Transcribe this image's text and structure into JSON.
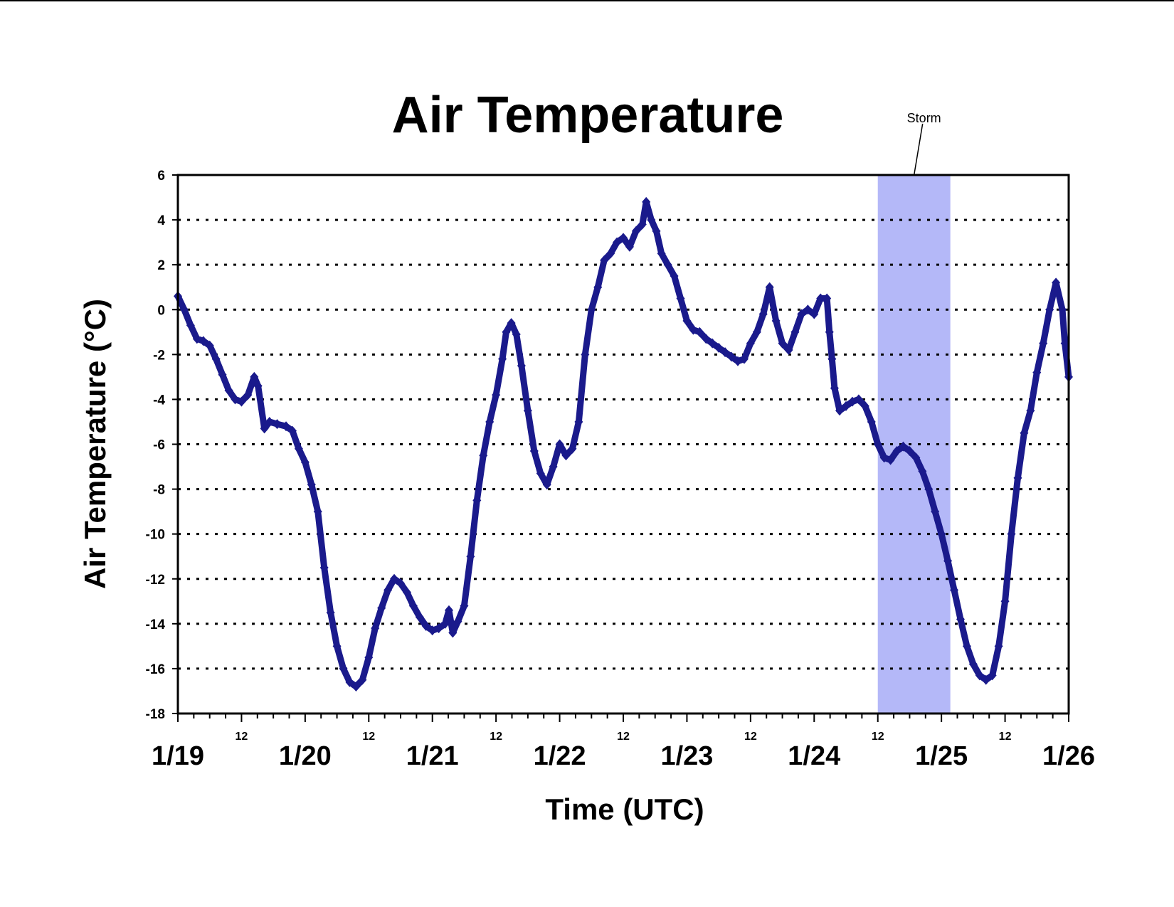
{
  "chart_data": {
    "type": "scatter",
    "title": "Air Temperature",
    "xlabel": "Time (UTC)",
    "ylabel": "Air Temperature (°C)",
    "ylim": [
      -18,
      6
    ],
    "xlim": [
      0,
      7
    ],
    "x_unit": "days since 1/19 00 UTC",
    "grid": "dotted horizontal",
    "yticks": [
      "6",
      "4",
      "2",
      "0",
      "-2",
      "-4",
      "-6",
      "-8",
      "-10",
      "-12",
      "-14",
      "-16",
      "-18"
    ],
    "day_ticks": [
      "1/19",
      "1/20",
      "1/21",
      "1/22",
      "1/23",
      "1/24",
      "1/25",
      "1/26"
    ],
    "hour_ticks": [
      "12",
      "12",
      "12",
      "12",
      "12",
      "12",
      "12"
    ],
    "annotation": {
      "label": "Storm",
      "start": 5.5,
      "end": 6.07,
      "color": "#b4b8f8"
    },
    "series": [
      {
        "name": "Air Temperature",
        "color": "#1a1a8c",
        "points": [
          [
            0.0,
            0.6
          ],
          [
            0.05,
            0.0
          ],
          [
            0.1,
            -0.7
          ],
          [
            0.15,
            -1.3
          ],
          [
            0.2,
            -1.4
          ],
          [
            0.25,
            -1.6
          ],
          [
            0.3,
            -2.2
          ],
          [
            0.35,
            -2.9
          ],
          [
            0.4,
            -3.6
          ],
          [
            0.45,
            -4.0
          ],
          [
            0.5,
            -4.1
          ],
          [
            0.55,
            -3.8
          ],
          [
            0.6,
            -3.0
          ],
          [
            0.63,
            -3.4
          ],
          [
            0.68,
            -5.3
          ],
          [
            0.72,
            -5.0
          ],
          [
            0.78,
            -5.1
          ],
          [
            0.85,
            -5.2
          ],
          [
            0.9,
            -5.4
          ],
          [
            0.95,
            -6.2
          ],
          [
            1.0,
            -6.8
          ],
          [
            1.05,
            -7.8
          ],
          [
            1.1,
            -9.0
          ],
          [
            1.15,
            -11.5
          ],
          [
            1.2,
            -13.5
          ],
          [
            1.25,
            -15.0
          ],
          [
            1.3,
            -16.0
          ],
          [
            1.35,
            -16.6
          ],
          [
            1.4,
            -16.8
          ],
          [
            1.45,
            -16.5
          ],
          [
            1.5,
            -15.5
          ],
          [
            1.55,
            -14.2
          ],
          [
            1.6,
            -13.3
          ],
          [
            1.65,
            -12.5
          ],
          [
            1.7,
            -12.0
          ],
          [
            1.75,
            -12.2
          ],
          [
            1.8,
            -12.6
          ],
          [
            1.85,
            -13.2
          ],
          [
            1.9,
            -13.7
          ],
          [
            1.95,
            -14.1
          ],
          [
            2.0,
            -14.3
          ],
          [
            2.05,
            -14.2
          ],
          [
            2.1,
            -14.0
          ],
          [
            2.13,
            -13.4
          ],
          [
            2.16,
            -14.4
          ],
          [
            2.2,
            -13.9
          ],
          [
            2.25,
            -13.2
          ],
          [
            2.3,
            -11.0
          ],
          [
            2.35,
            -8.5
          ],
          [
            2.4,
            -6.5
          ],
          [
            2.45,
            -5.0
          ],
          [
            2.5,
            -3.8
          ],
          [
            2.55,
            -2.2
          ],
          [
            2.58,
            -1.0
          ],
          [
            2.62,
            -0.6
          ],
          [
            2.66,
            -1.1
          ],
          [
            2.7,
            -2.5
          ],
          [
            2.75,
            -4.5
          ],
          [
            2.8,
            -6.3
          ],
          [
            2.85,
            -7.3
          ],
          [
            2.9,
            -7.8
          ],
          [
            2.95,
            -7.0
          ],
          [
            3.0,
            -6.0
          ],
          [
            3.05,
            -6.5
          ],
          [
            3.1,
            -6.2
          ],
          [
            3.15,
            -5.0
          ],
          [
            3.2,
            -2.0
          ],
          [
            3.25,
            0.0
          ],
          [
            3.3,
            1.0
          ],
          [
            3.35,
            2.2
          ],
          [
            3.4,
            2.5
          ],
          [
            3.45,
            3.0
          ],
          [
            3.5,
            3.2
          ],
          [
            3.55,
            2.8
          ],
          [
            3.6,
            3.5
          ],
          [
            3.65,
            3.8
          ],
          [
            3.68,
            4.8
          ],
          [
            3.72,
            4.0
          ],
          [
            3.76,
            3.5
          ],
          [
            3.8,
            2.5
          ],
          [
            3.85,
            2.0
          ],
          [
            3.9,
            1.5
          ],
          [
            3.95,
            0.5
          ],
          [
            4.0,
            -0.5
          ],
          [
            4.05,
            -0.9
          ],
          [
            4.1,
            -1.0
          ],
          [
            4.15,
            -1.3
          ],
          [
            4.2,
            -1.5
          ],
          [
            4.25,
            -1.7
          ],
          [
            4.3,
            -1.9
          ],
          [
            4.35,
            -2.1
          ],
          [
            4.4,
            -2.3
          ],
          [
            4.45,
            -2.2
          ],
          [
            4.5,
            -1.5
          ],
          [
            4.55,
            -1.0
          ],
          [
            4.6,
            -0.2
          ],
          [
            4.65,
            1.0
          ],
          [
            4.7,
            -0.5
          ],
          [
            4.75,
            -1.5
          ],
          [
            4.8,
            -1.8
          ],
          [
            4.85,
            -1.0
          ],
          [
            4.9,
            -0.2
          ],
          [
            4.95,
            0.0
          ],
          [
            5.0,
            -0.2
          ],
          [
            5.05,
            0.5
          ],
          [
            5.1,
            0.5
          ],
          [
            5.12,
            -1.0
          ],
          [
            5.14,
            -2.2
          ],
          [
            5.16,
            -3.5
          ],
          [
            5.2,
            -4.5
          ],
          [
            5.25,
            -4.3
          ],
          [
            5.3,
            -4.1
          ],
          [
            5.35,
            -4.0
          ],
          [
            5.4,
            -4.3
          ],
          [
            5.45,
            -5.0
          ],
          [
            5.5,
            -6.0
          ],
          [
            5.55,
            -6.6
          ],
          [
            5.6,
            -6.7
          ],
          [
            5.65,
            -6.3
          ],
          [
            5.7,
            -6.1
          ],
          [
            5.75,
            -6.3
          ],
          [
            5.8,
            -6.6
          ],
          [
            5.85,
            -7.2
          ],
          [
            5.9,
            -8.0
          ],
          [
            5.95,
            -9.0
          ],
          [
            6.0,
            -10.0
          ],
          [
            6.05,
            -11.2
          ],
          [
            6.1,
            -12.5
          ],
          [
            6.15,
            -13.8
          ],
          [
            6.2,
            -15.0
          ],
          [
            6.25,
            -15.8
          ],
          [
            6.3,
            -16.3
          ],
          [
            6.35,
            -16.5
          ],
          [
            6.4,
            -16.3
          ],
          [
            6.45,
            -15.0
          ],
          [
            6.5,
            -13.0
          ],
          [
            6.55,
            -10.0
          ],
          [
            6.6,
            -7.5
          ],
          [
            6.65,
            -5.5
          ],
          [
            6.7,
            -4.5
          ],
          [
            6.75,
            -2.8
          ],
          [
            6.8,
            -1.5
          ],
          [
            6.85,
            0.0
          ],
          [
            6.9,
            1.2
          ],
          [
            6.95,
            0.0
          ],
          [
            6.97,
            -1.5
          ],
          [
            7.0,
            -3.0
          ]
        ]
      }
    ]
  }
}
